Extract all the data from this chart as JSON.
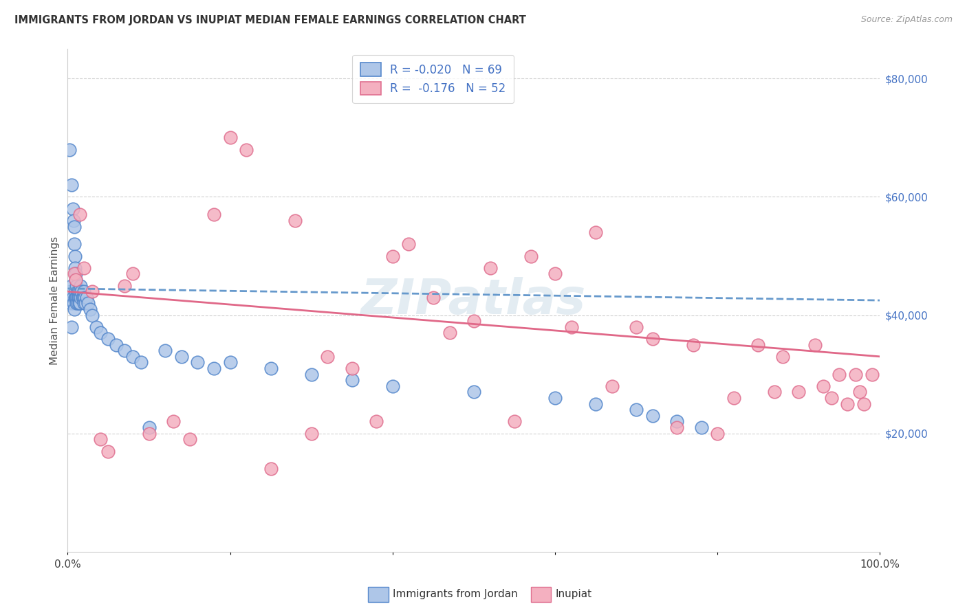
{
  "title": "IMMIGRANTS FROM JORDAN VS INUPIAT MEDIAN FEMALE EARNINGS CORRELATION CHART",
  "source": "Source: ZipAtlas.com",
  "ylabel": "Median Female Earnings",
  "bottom_label1": "Immigrants from Jordan",
  "bottom_label2": "Inupiat",
  "legend_line1": "R = -0.020   N = 69",
  "legend_line2": "R =  -0.176   N = 52",
  "color_blue_fill": "#aec6e8",
  "color_blue_edge": "#5588cc",
  "color_pink_fill": "#f4b0c0",
  "color_pink_edge": "#e07090",
  "color_blue_trendline": "#6699cc",
  "color_pink_trendline": "#e06888",
  "color_grid": "#cccccc",
  "ytick_values": [
    20000,
    40000,
    60000,
    80000
  ],
  "ytick_labels": [
    "$20,000",
    "$40,000",
    "$60,000",
    "$80,000"
  ],
  "watermark": "ZIPatlas",
  "xlim": [
    0,
    100
  ],
  "ylim": [
    0,
    85000
  ],
  "blue_x": [
    0.2,
    0.3,
    0.4,
    0.5,
    0.5,
    0.5,
    0.6,
    0.6,
    0.7,
    0.7,
    0.8,
    0.8,
    0.8,
    0.9,
    0.9,
    0.9,
    1.0,
    1.0,
    1.0,
    1.0,
    1.1,
    1.1,
    1.1,
    1.2,
    1.2,
    1.2,
    1.3,
    1.3,
    1.4,
    1.4,
    1.5,
    1.5,
    1.6,
    1.6,
    1.7,
    1.8,
    1.9,
    2.0,
    2.0,
    2.1,
    2.2,
    2.3,
    2.5,
    2.8,
    3.0,
    3.5,
    4.0,
    5.0,
    6.0,
    7.0,
    8.0,
    9.0,
    10.0,
    12.0,
    14.0,
    16.0,
    18.0,
    20.0,
    25.0,
    30.0,
    35.0,
    40.0,
    50.0,
    60.0,
    65.0,
    70.0,
    72.0,
    75.0,
    78.0
  ],
  "blue_y": [
    68000,
    44000,
    42000,
    62000,
    45000,
    38000,
    58000,
    43000,
    56000,
    42000,
    55000,
    52000,
    41000,
    50000,
    48000,
    43000,
    47000,
    46000,
    44000,
    43000,
    45000,
    43000,
    42000,
    44000,
    43000,
    42000,
    44000,
    43000,
    43000,
    42000,
    44000,
    42000,
    45000,
    43000,
    44000,
    43000,
    43000,
    44000,
    42000,
    43000,
    42000,
    43000,
    42000,
    41000,
    40000,
    38000,
    37000,
    36000,
    35000,
    34000,
    33000,
    32000,
    21000,
    34000,
    33000,
    32000,
    31000,
    32000,
    31000,
    30000,
    29000,
    28000,
    27000,
    26000,
    25000,
    24000,
    23000,
    22000,
    21000
  ],
  "pink_x": [
    0.8,
    1.0,
    1.5,
    2.0,
    3.0,
    4.0,
    5.0,
    7.0,
    8.0,
    10.0,
    13.0,
    15.0,
    18.0,
    20.0,
    22.0,
    25.0,
    28.0,
    30.0,
    32.0,
    35.0,
    38.0,
    40.0,
    42.0,
    45.0,
    47.0,
    50.0,
    52.0,
    55.0,
    57.0,
    60.0,
    62.0,
    65.0,
    67.0,
    70.0,
    72.0,
    75.0,
    77.0,
    80.0,
    82.0,
    85.0,
    87.0,
    88.0,
    90.0,
    92.0,
    93.0,
    94.0,
    95.0,
    96.0,
    97.0,
    97.5,
    98.0,
    99.0
  ],
  "pink_y": [
    47000,
    46000,
    57000,
    48000,
    44000,
    19000,
    17000,
    45000,
    47000,
    20000,
    22000,
    19000,
    57000,
    70000,
    68000,
    14000,
    56000,
    20000,
    33000,
    31000,
    22000,
    50000,
    52000,
    43000,
    37000,
    39000,
    48000,
    22000,
    50000,
    47000,
    38000,
    54000,
    28000,
    38000,
    36000,
    21000,
    35000,
    20000,
    26000,
    35000,
    27000,
    33000,
    27000,
    35000,
    28000,
    26000,
    30000,
    25000,
    30000,
    27000,
    25000,
    30000
  ],
  "blue_trend_x": [
    0,
    100
  ],
  "blue_trend_y": [
    44500,
    42500
  ],
  "pink_trend_x": [
    0,
    100
  ],
  "pink_trend_y": [
    44000,
    33000
  ]
}
